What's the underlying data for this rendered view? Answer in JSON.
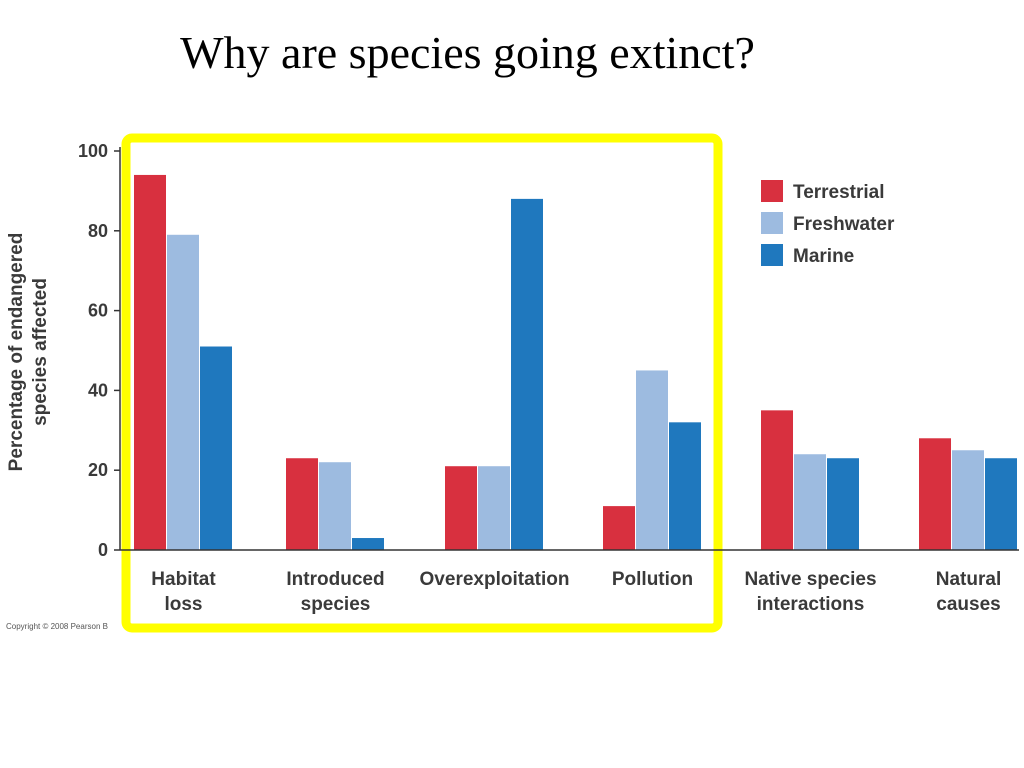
{
  "slide": {
    "title": "Why are species going extinct?",
    "copyright": "Copyright © 2008 Pearson B"
  },
  "highlight": {
    "color": "#ffff00",
    "covers_categories": [
      "Habitat loss",
      "Introduced species",
      "Overexploitation",
      "Pollution"
    ]
  },
  "chart_data": {
    "type": "bar",
    "title": "",
    "xlabel": "",
    "ylabel": [
      "Percentage of endangered",
      "species affected"
    ],
    "ylim": [
      0,
      100
    ],
    "yticks": [
      0,
      20,
      40,
      60,
      80,
      100
    ],
    "grid": false,
    "legend_position": "top-right",
    "categories": [
      [
        "Habitat",
        "loss"
      ],
      [
        "Introduced",
        "species"
      ],
      [
        "Overexploitation"
      ],
      [
        "Pollution"
      ],
      [
        "Native species",
        "interactions"
      ],
      [
        "Natural",
        "causes"
      ]
    ],
    "series": [
      {
        "name": "Terrestrial",
        "color": "#d8303f",
        "values": [
          94,
          23,
          21,
          11,
          35,
          28
        ]
      },
      {
        "name": "Freshwater",
        "color": "#9dbbe0",
        "values": [
          79,
          22,
          21,
          45,
          24,
          25
        ]
      },
      {
        "name": "Marine",
        "color": "#1f78be",
        "values": [
          51,
          3,
          88,
          32,
          23,
          23
        ]
      }
    ]
  }
}
